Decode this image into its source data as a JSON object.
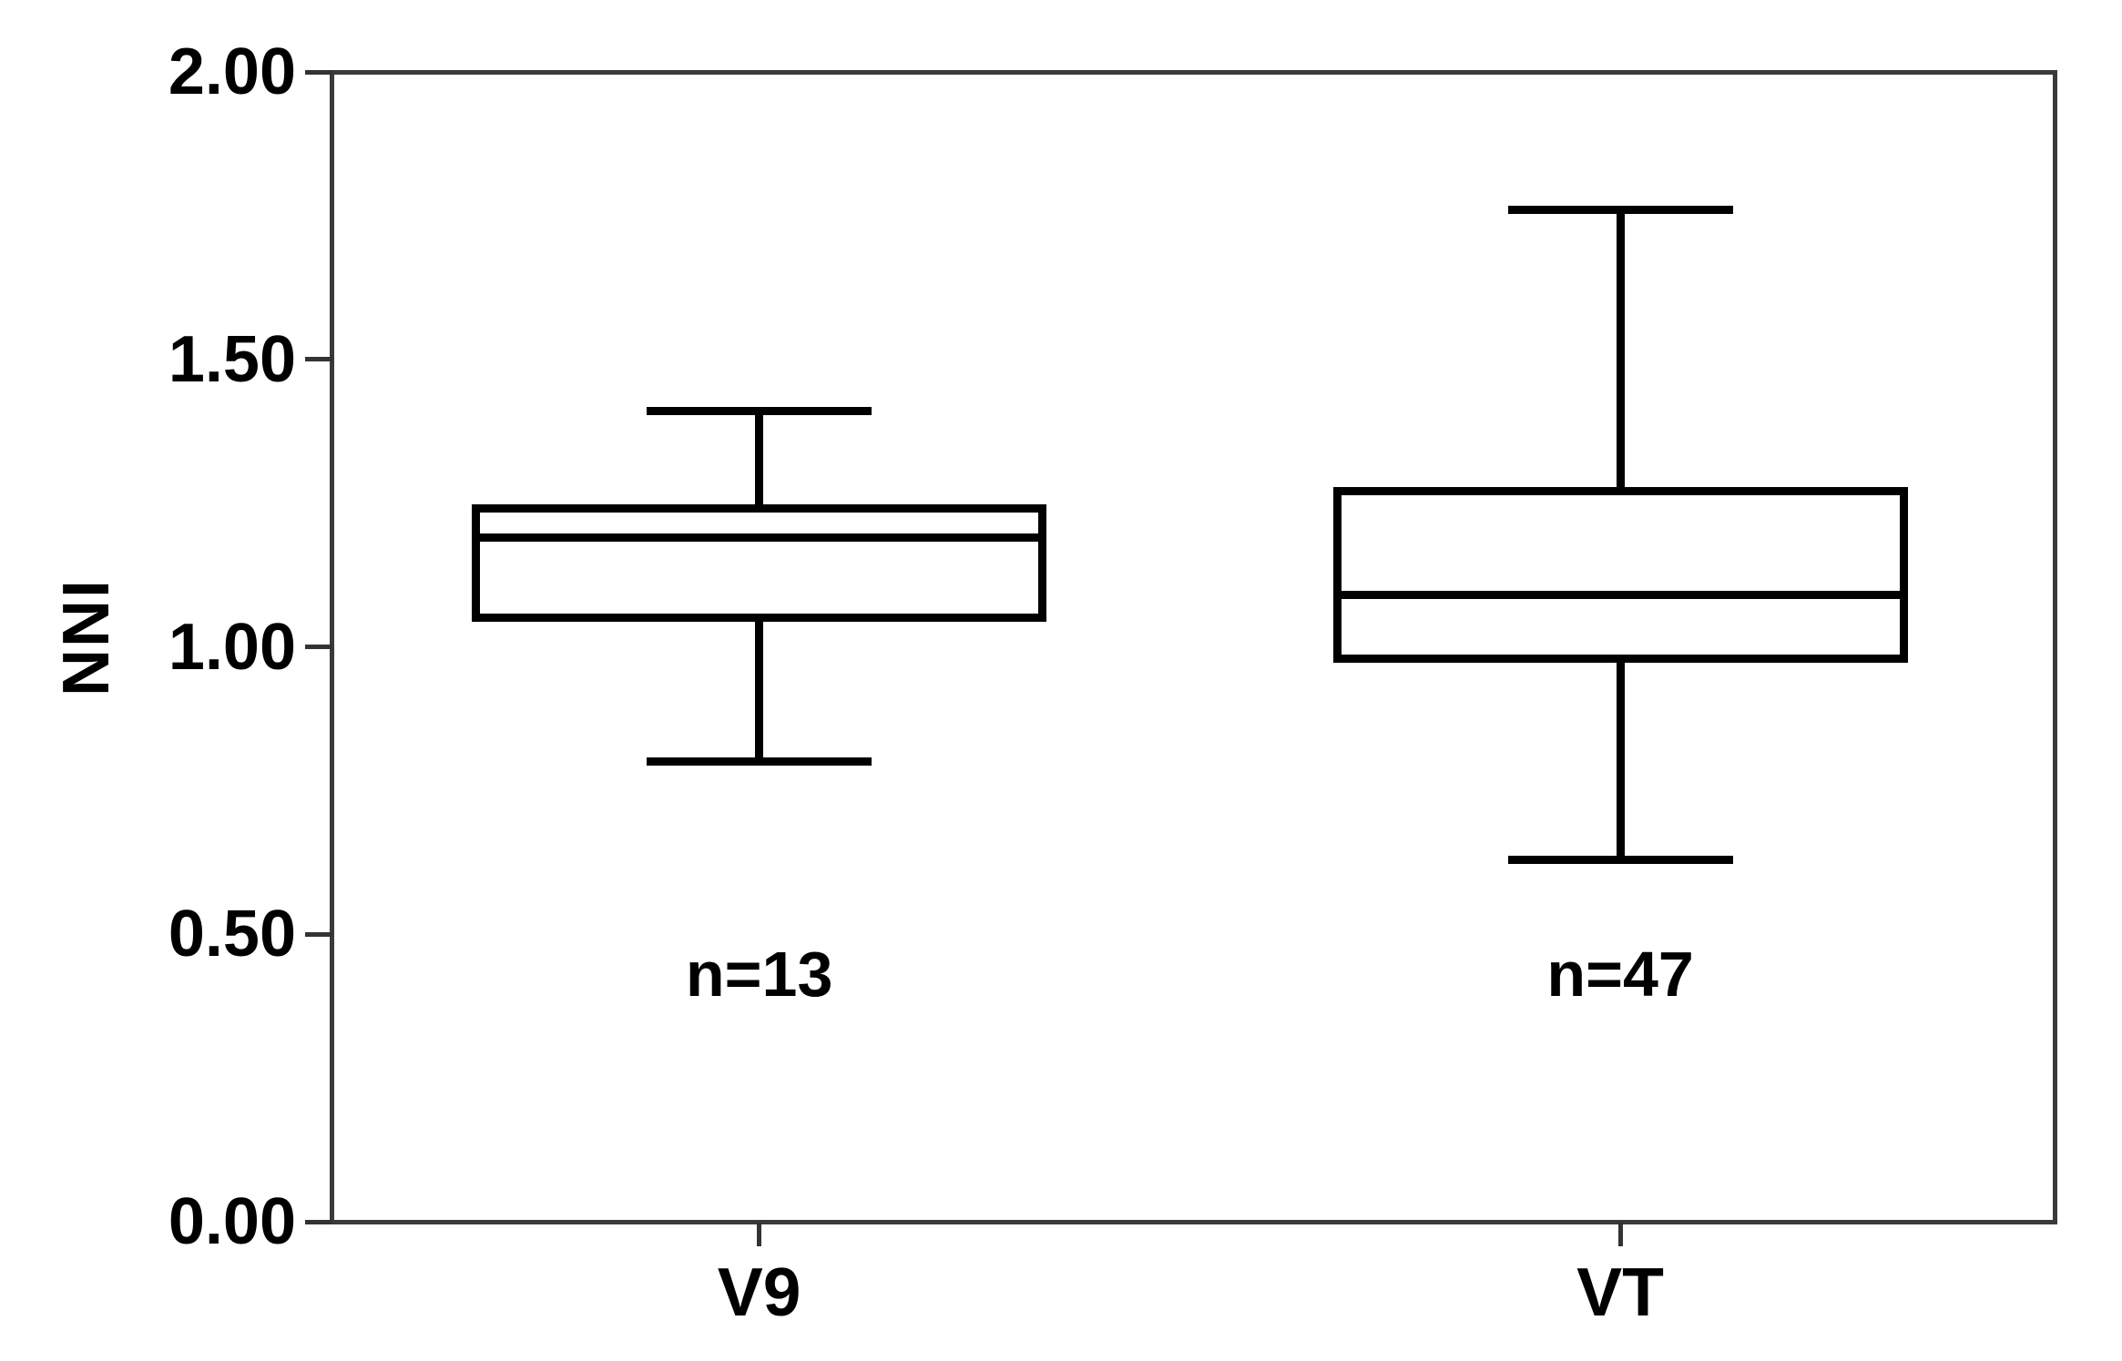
{
  "chart_data": {
    "type": "boxplot",
    "title": "",
    "xlabel": "",
    "ylabel": "NNI",
    "ylim": [
      0.0,
      2.0
    ],
    "ytick_values": [
      2.0,
      1.5,
      1.0,
      0.5,
      0.0
    ],
    "ytick_labels": [
      "2.00",
      "1.50",
      "1.00",
      "0.50",
      "0.00"
    ],
    "categories": [
      "V9",
      "VT"
    ],
    "series": [
      {
        "category": "V9",
        "n": 13,
        "count_label": "n=13",
        "whisker_low": 0.8,
        "q1": 1.05,
        "median": 1.19,
        "q3": 1.24,
        "whisker_high": 1.41
      },
      {
        "category": "VT",
        "n": 47,
        "count_label": "n=47",
        "whisker_low": 0.63,
        "q1": 0.98,
        "median": 1.09,
        "q3": 1.27,
        "whisker_high": 1.76
      }
    ],
    "annotation_value_y": 0.43,
    "grid": false,
    "legend": "none",
    "colors": {
      "box_stroke": "#000000",
      "axis_frame": "#3a3a3a",
      "text": "#000000",
      "background": "#ffffff"
    }
  }
}
